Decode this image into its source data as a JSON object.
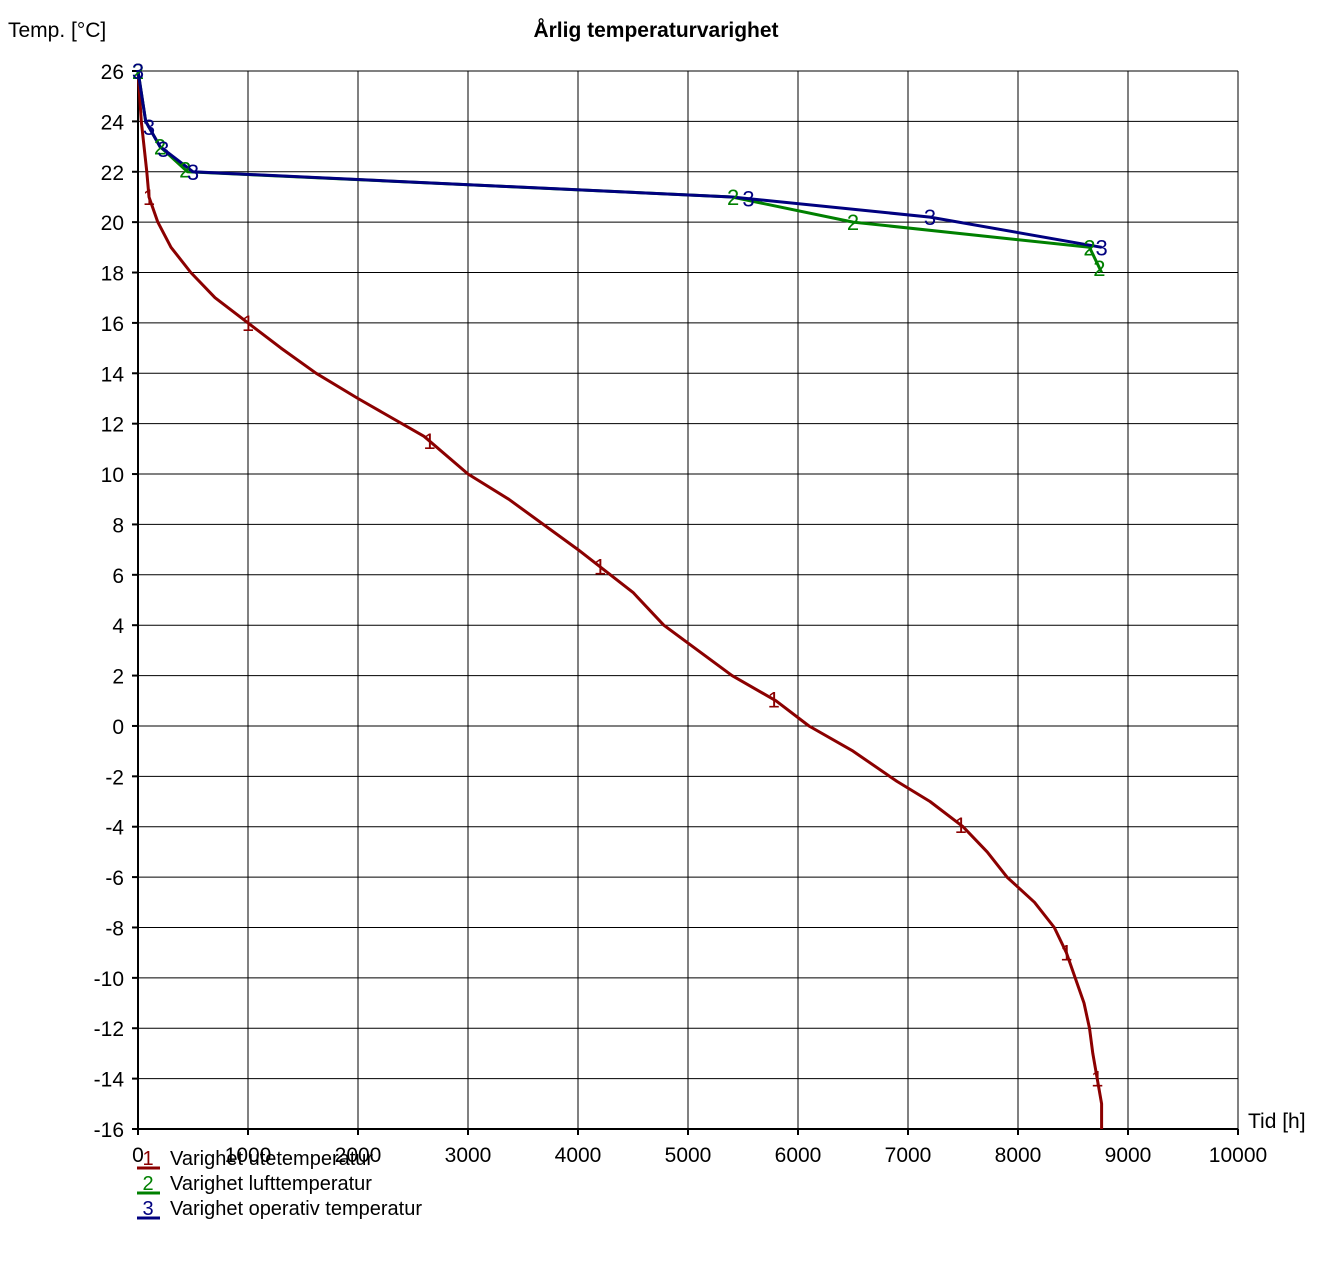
{
  "chart_data": {
    "type": "line",
    "title": "Årlig temperaturvarighet",
    "ylabel": "Temp. [°C]",
    "xlabel": "Tid [h]",
    "xlim": [
      0,
      10000
    ],
    "ylim": [
      -16,
      26
    ],
    "x_ticks": [
      "0",
      "1000",
      "2000",
      "3000",
      "4000",
      "5000",
      "6000",
      "7000",
      "8000",
      "9000",
      "10000"
    ],
    "y_ticks": [
      "26",
      "24",
      "22",
      "20",
      "18",
      "16",
      "14",
      "12",
      "10",
      "8",
      "6",
      "4",
      "2",
      "0",
      "-2",
      "-4",
      "-6",
      "-8",
      "-10",
      "-12",
      "-14",
      "-16"
    ],
    "grid": true,
    "legend_position": "bottom-left",
    "series": [
      {
        "id": "1",
        "name": "Varighet utetemperatur",
        "color": "#8b0000",
        "x": [
          0,
          30,
          80,
          100,
          180,
          300,
          480,
          700,
          1000,
          1300,
          1620,
          2000,
          2600,
          3000,
          3370,
          4000,
          4500,
          4780,
          5400,
          5800,
          6100,
          6500,
          6900,
          7200,
          7500,
          7720,
          7900,
          8150,
          8330,
          8440,
          8520,
          8600,
          8650,
          8680,
          8720,
          8760,
          8760
        ],
        "y": [
          26,
          24,
          22,
          21,
          20,
          19,
          18,
          17,
          16,
          15,
          14,
          13,
          11.5,
          10,
          9,
          7,
          5.3,
          4,
          2,
          1,
          0,
          -1,
          -2.2,
          -3,
          -4,
          -5,
          -6,
          -7,
          -8,
          -9,
          -10,
          -11,
          -12,
          -13,
          -14,
          -15,
          -16
        ],
        "markers_x": [
          100,
          1000,
          2650,
          4200,
          5780,
          7480,
          8440,
          8720
        ]
      },
      {
        "id": "2",
        "name": "Varighet lufttemperatur",
        "color": "#008000",
        "x": [
          0,
          70,
          200,
          450,
          5400,
          6500,
          8650,
          8760
        ],
        "y": [
          26,
          24,
          23,
          22,
          21,
          20,
          19,
          18
        ],
        "markers_x": [
          0,
          200,
          430,
          5410,
          6500,
          8650,
          8740
        ]
      },
      {
        "id": "3",
        "name": "Varighet operativ temperatur",
        "color": "#00007f",
        "x": [
          0,
          70,
          200,
          500,
          5400,
          7200,
          8760
        ],
        "y": [
          26,
          24,
          23,
          22,
          21,
          20.2,
          19
        ],
        "markers_x": [
          0,
          100,
          230,
          500,
          5550,
          7200,
          8760
        ]
      }
    ]
  }
}
